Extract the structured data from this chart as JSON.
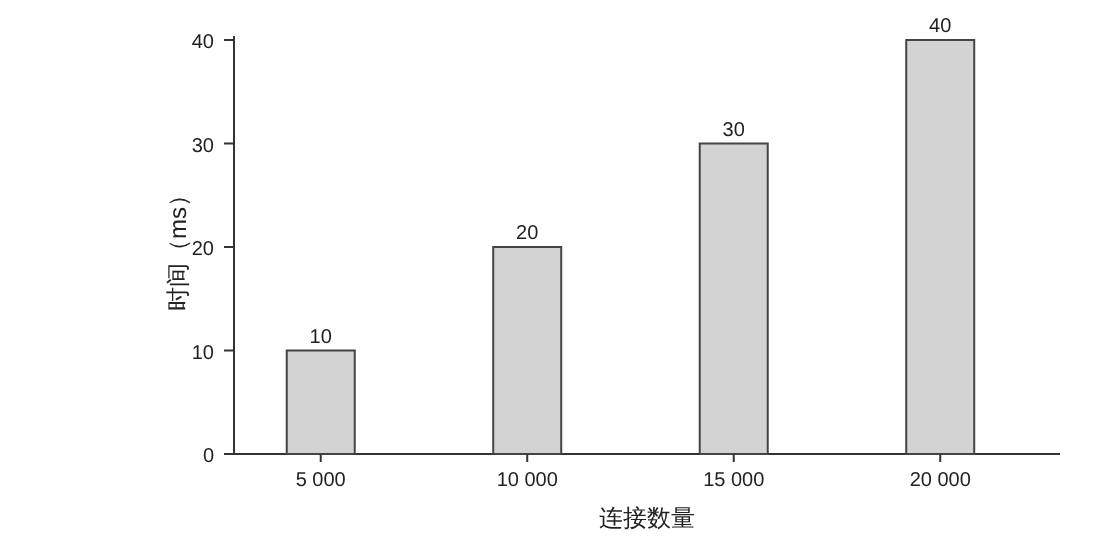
{
  "chart_data": {
    "type": "bar",
    "xlabel": "连接数量",
    "ylabel": "时间（ms）",
    "categories": [
      "5 000",
      "10 000",
      "15 000",
      "20 000"
    ],
    "values": [
      10,
      20,
      30,
      40
    ],
    "color": "#d3d3d3",
    "ylim": [
      0,
      40
    ],
    "yticks": [
      0,
      10,
      20,
      30,
      40
    ],
    "data_labels": true
  }
}
